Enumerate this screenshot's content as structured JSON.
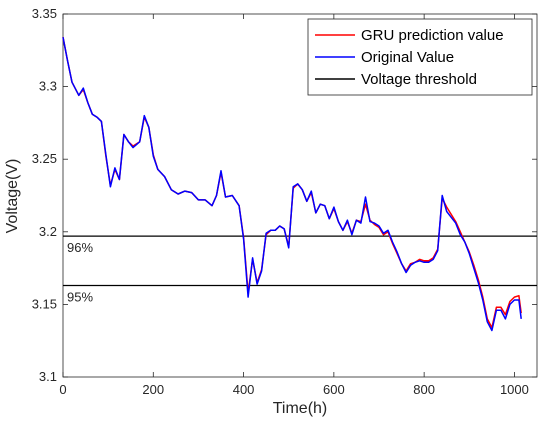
{
  "chart_data": {
    "type": "line",
    "xlabel": "Time(h)",
    "ylabel": "Voltage(V)",
    "xlim": [
      0,
      1050
    ],
    "ylim": [
      3.1,
      3.35
    ],
    "xticks": [
      0,
      200,
      400,
      600,
      800,
      1000
    ],
    "yticks": [
      3.1,
      3.15,
      3.2,
      3.25,
      3.3,
      3.35
    ],
    "x_tick_labels": [
      "0",
      "200",
      "400",
      "600",
      "800",
      "1000"
    ],
    "y_tick_labels": [
      "3.1",
      "3.15",
      "3.2",
      "3.25",
      "3.3",
      "3.35"
    ],
    "grid": false,
    "legend_position": "top-right",
    "series": [
      {
        "name": "GRU prediction value",
        "color": "#ff0000",
        "x": [
          0,
          10,
          20,
          35,
          45,
          55,
          65,
          75,
          85,
          95,
          105,
          115,
          125,
          135,
          145,
          155,
          170,
          180,
          190,
          200,
          210,
          225,
          240,
          255,
          270,
          285,
          300,
          315,
          330,
          340,
          350,
          360,
          375,
          390,
          400,
          410,
          420,
          430,
          440,
          450,
          460,
          470,
          480,
          490,
          500,
          510,
          520,
          530,
          540,
          550,
          560,
          570,
          580,
          590,
          600,
          610,
          620,
          630,
          640,
          650,
          660,
          670,
          680,
          690,
          700,
          710,
          720,
          730,
          740,
          750,
          760,
          770,
          780,
          790,
          800,
          810,
          820,
          830,
          840,
          850,
          860,
          870,
          880,
          890,
          900,
          910,
          920,
          930,
          940,
          950,
          960,
          970,
          980,
          990,
          1000,
          1010,
          1015
        ],
        "y": [
          3.334,
          3.318,
          3.303,
          3.294,
          3.298,
          3.289,
          3.281,
          3.279,
          3.276,
          3.252,
          3.232,
          3.243,
          3.236,
          3.267,
          3.262,
          3.259,
          3.262,
          3.279,
          3.272,
          3.253,
          3.243,
          3.238,
          3.229,
          3.226,
          3.228,
          3.227,
          3.222,
          3.222,
          3.218,
          3.225,
          3.241,
          3.224,
          3.225,
          3.218,
          3.196,
          3.158,
          3.181,
          3.165,
          3.174,
          3.198,
          3.201,
          3.201,
          3.204,
          3.202,
          3.19,
          3.23,
          3.233,
          3.229,
          3.221,
          3.227,
          3.213,
          3.219,
          3.218,
          3.209,
          3.216,
          3.207,
          3.201,
          3.207,
          3.199,
          3.208,
          3.207,
          3.219,
          3.208,
          3.205,
          3.203,
          3.198,
          3.2,
          3.192,
          3.185,
          3.178,
          3.173,
          3.178,
          3.179,
          3.181,
          3.18,
          3.18,
          3.182,
          3.188,
          3.223,
          3.217,
          3.212,
          3.207,
          3.2,
          3.193,
          3.186,
          3.177,
          3.167,
          3.155,
          3.14,
          3.134,
          3.148,
          3.148,
          3.143,
          3.152,
          3.155,
          3.156,
          3.144
        ],
        "style": "solid"
      },
      {
        "name": "Original Value",
        "color": "#0000ff",
        "x": [
          0,
          10,
          20,
          35,
          45,
          55,
          65,
          75,
          85,
          95,
          105,
          115,
          125,
          135,
          145,
          155,
          170,
          180,
          190,
          200,
          210,
          225,
          240,
          255,
          270,
          285,
          300,
          315,
          330,
          340,
          350,
          360,
          375,
          390,
          400,
          410,
          420,
          430,
          440,
          450,
          460,
          470,
          480,
          490,
          500,
          510,
          520,
          530,
          540,
          550,
          560,
          570,
          580,
          590,
          600,
          610,
          620,
          630,
          640,
          650,
          660,
          670,
          680,
          690,
          700,
          710,
          720,
          730,
          740,
          750,
          760,
          770,
          780,
          790,
          800,
          810,
          820,
          830,
          840,
          850,
          860,
          870,
          880,
          890,
          900,
          910,
          920,
          930,
          940,
          950,
          960,
          970,
          980,
          990,
          1000,
          1010,
          1015
        ],
        "y": [
          3.334,
          3.318,
          3.303,
          3.294,
          3.299,
          3.289,
          3.281,
          3.279,
          3.276,
          3.253,
          3.231,
          3.244,
          3.236,
          3.267,
          3.262,
          3.258,
          3.262,
          3.28,
          3.272,
          3.252,
          3.243,
          3.238,
          3.229,
          3.226,
          3.228,
          3.227,
          3.222,
          3.222,
          3.218,
          3.225,
          3.242,
          3.224,
          3.225,
          3.218,
          3.195,
          3.155,
          3.182,
          3.164,
          3.173,
          3.199,
          3.201,
          3.201,
          3.204,
          3.202,
          3.189,
          3.231,
          3.233,
          3.229,
          3.221,
          3.228,
          3.213,
          3.219,
          3.218,
          3.209,
          3.217,
          3.207,
          3.201,
          3.208,
          3.198,
          3.208,
          3.206,
          3.224,
          3.207,
          3.206,
          3.204,
          3.199,
          3.201,
          3.193,
          3.186,
          3.178,
          3.172,
          3.177,
          3.179,
          3.18,
          3.179,
          3.179,
          3.181,
          3.187,
          3.225,
          3.214,
          3.21,
          3.206,
          3.198,
          3.193,
          3.185,
          3.175,
          3.165,
          3.153,
          3.138,
          3.132,
          3.146,
          3.146,
          3.14,
          3.15,
          3.153,
          3.153,
          3.14
        ],
        "style": "solid"
      },
      {
        "name": "Voltage threshold",
        "color": "#000000",
        "x": [
          0,
          1050
        ],
        "y": [
          3.197,
          3.197
        ],
        "style": "solid"
      }
    ],
    "threshold_lines": [
      {
        "y": 3.197,
        "label": "96%"
      },
      {
        "y": 3.163,
        "label": "95%"
      }
    ]
  }
}
